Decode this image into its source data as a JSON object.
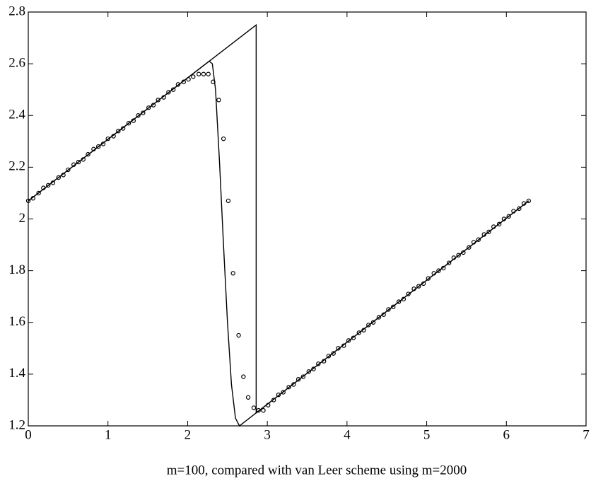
{
  "chart_data": {
    "type": "line",
    "xlabel": "m=100, compared with van Leer scheme using m=2000",
    "xlim": [
      0,
      7
    ],
    "ylim": [
      1.2,
      2.8
    ],
    "xticks": [
      0,
      1,
      2,
      3,
      4,
      5,
      6,
      7
    ],
    "yticks": [
      1.2,
      1.4,
      1.6,
      1.8,
      2,
      2.2,
      2.4,
      2.6,
      2.8
    ],
    "series": [
      {
        "style": "line",
        "color": "#000000",
        "x": [
          0,
          2.86,
          2.86,
          6.28
        ],
        "values": [
          2.07,
          2.75,
          1.25,
          2.07
        ]
      },
      {
        "style": "line",
        "color": "#000000",
        "x": [
          0,
          2.27,
          2.31,
          2.35,
          2.4,
          2.45,
          2.5,
          2.55,
          2.6,
          2.65,
          6.28
        ],
        "values": [
          2.07,
          2.61,
          2.6,
          2.5,
          2.22,
          1.9,
          1.6,
          1.36,
          1.23,
          1.2,
          2.07
        ]
      },
      {
        "style": "markers",
        "color": "#000000",
        "x": [
          0,
          0.06,
          0.13,
          0.19,
          0.25,
          0.31,
          0.38,
          0.44,
          0.5,
          0.57,
          0.63,
          0.69,
          0.75,
          0.82,
          0.88,
          0.94,
          1.0,
          1.07,
          1.13,
          1.19,
          1.26,
          1.32,
          1.38,
          1.44,
          1.51,
          1.57,
          1.63,
          1.7,
          1.76,
          1.82,
          1.88,
          1.95,
          2.01,
          2.07,
          2.14,
          2.2,
          2.26,
          2.32,
          2.39,
          2.45,
          2.51,
          2.57,
          2.64,
          2.7,
          2.76,
          2.83,
          2.89,
          2.95,
          3.01,
          3.08,
          3.14,
          3.2,
          3.27,
          3.33,
          3.39,
          3.45,
          3.52,
          3.58,
          3.64,
          3.71,
          3.77,
          3.83,
          3.89,
          3.96,
          4.02,
          4.08,
          4.15,
          4.21,
          4.27,
          4.33,
          4.4,
          4.46,
          4.52,
          4.58,
          4.65,
          4.71,
          4.77,
          4.84,
          4.9,
          4.96,
          5.02,
          5.09,
          5.15,
          5.21,
          5.28,
          5.34,
          5.4,
          5.46,
          5.53,
          5.59,
          5.65,
          5.72,
          5.78,
          5.84,
          5.91,
          5.97,
          6.03,
          6.09,
          6.16,
          6.22,
          6.28
        ],
        "values": [
          2.07,
          2.08,
          2.1,
          2.12,
          2.13,
          2.14,
          2.16,
          2.17,
          2.19,
          2.21,
          2.22,
          2.23,
          2.25,
          2.27,
          2.28,
          2.29,
          2.31,
          2.32,
          2.34,
          2.35,
          2.37,
          2.38,
          2.4,
          2.41,
          2.43,
          2.44,
          2.46,
          2.47,
          2.49,
          2.5,
          2.52,
          2.53,
          2.54,
          2.55,
          2.56,
          2.56,
          2.56,
          2.53,
          2.46,
          2.31,
          2.07,
          1.79,
          1.55,
          1.39,
          1.31,
          1.27,
          1.26,
          1.26,
          1.28,
          1.3,
          1.32,
          1.33,
          1.35,
          1.36,
          1.38,
          1.39,
          1.41,
          1.42,
          1.44,
          1.45,
          1.47,
          1.48,
          1.5,
          1.51,
          1.53,
          1.54,
          1.56,
          1.57,
          1.59,
          1.6,
          1.62,
          1.63,
          1.65,
          1.66,
          1.68,
          1.69,
          1.71,
          1.73,
          1.74,
          1.75,
          1.77,
          1.79,
          1.8,
          1.81,
          1.83,
          1.85,
          1.86,
          1.87,
          1.89,
          1.91,
          1.92,
          1.94,
          1.95,
          1.97,
          1.98,
          2.0,
          2.01,
          2.03,
          2.04,
          2.06,
          2.07
        ]
      }
    ]
  }
}
